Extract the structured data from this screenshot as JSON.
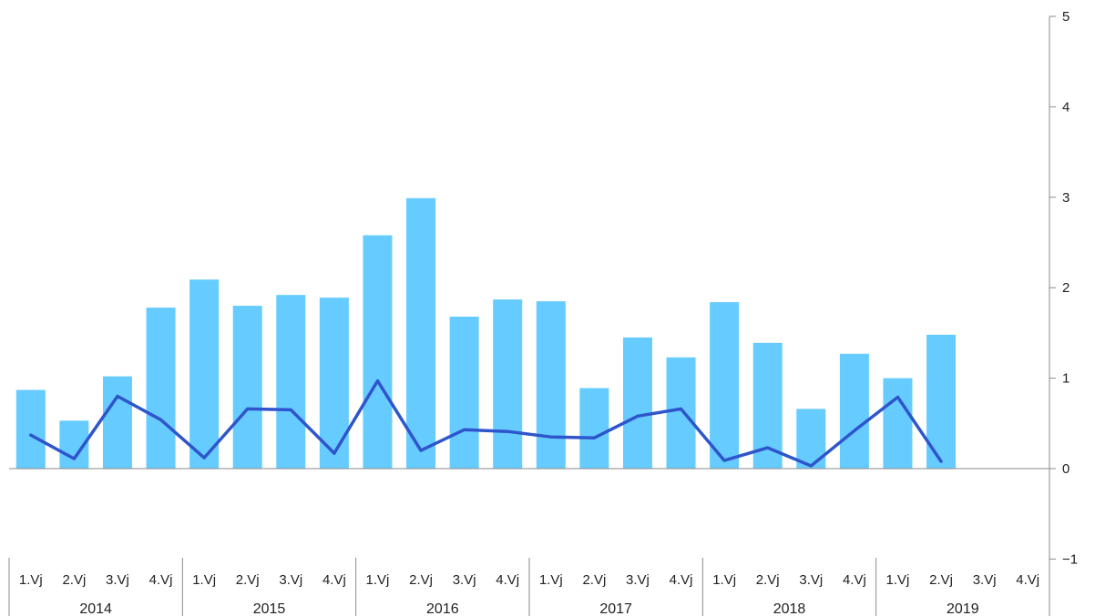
{
  "chart_data": {
    "type": "bar",
    "title": "",
    "xlabel": "",
    "ylabel": "",
    "ylim": [
      -1,
      5
    ],
    "yticks": [
      "5",
      "4",
      "3",
      "2",
      "1",
      "0",
      "−1"
    ],
    "ytick_values": [
      5,
      4,
      3,
      2,
      1,
      0,
      -1
    ],
    "grid": false,
    "categories": [
      "1.Vj",
      "2.Vj",
      "3.Vj",
      "4.Vj",
      "1.Vj",
      "2.Vj",
      "3.Vj",
      "4.Vj",
      "1.Vj",
      "2.Vj",
      "3.Vj",
      "4.Vj",
      "1.Vj",
      "2.Vj",
      "3.Vj",
      "4.Vj",
      "1.Vj",
      "2.Vj",
      "3.Vj",
      "4.Vj",
      "1.Vj",
      "2.Vj",
      "3.Vj",
      "4.Vj"
    ],
    "groups": [
      "2014",
      "2015",
      "2016",
      "2017",
      "2018",
      "2019"
    ],
    "series": [
      {
        "type": "bar",
        "color": "#66ccff",
        "values": [
          0.87,
          0.53,
          1.02,
          1.78,
          2.09,
          1.8,
          1.92,
          1.89,
          2.58,
          2.99,
          1.68,
          1.87,
          1.85,
          0.89,
          1.45,
          1.23,
          1.84,
          1.39,
          0.66,
          1.27,
          1.0,
          1.48,
          null,
          null
        ]
      },
      {
        "type": "line",
        "color": "#2f55cc",
        "values": [
          0.37,
          0.11,
          0.8,
          0.54,
          0.12,
          0.66,
          0.65,
          0.17,
          0.97,
          0.2,
          0.43,
          0.41,
          0.35,
          0.34,
          0.58,
          0.66,
          0.09,
          0.23,
          0.03,
          0.42,
          0.79,
          0.08,
          null,
          null
        ]
      }
    ]
  }
}
